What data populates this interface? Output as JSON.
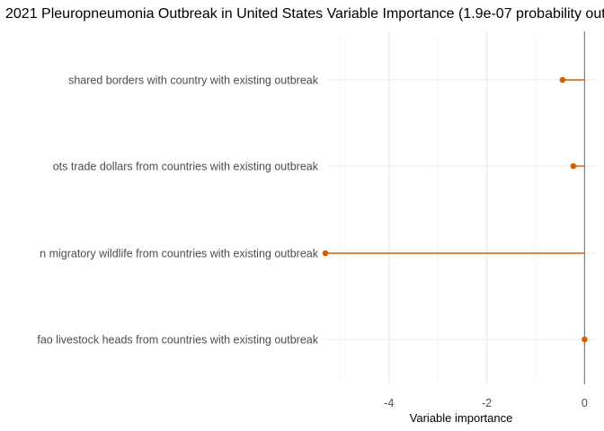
{
  "chart_data": {
    "type": "lollipop",
    "title": "2021 Pleuropneumonia Outbreak in United States Variable Importance (1.9e-07 probability out",
    "xlabel": "Variable importance",
    "ylabel": "",
    "xlim": [
      -5.3,
      0.25
    ],
    "x_ticks": [
      -4,
      -2,
      0
    ],
    "x_tick_labels": [
      "-4",
      "-2",
      "0"
    ],
    "x_minor_ticks": [
      -5,
      -3,
      -1
    ],
    "categories": [
      "shared borders with country with existing outbreak",
      "ots trade dollars from countries with existing outbreak",
      "n migratory wildlife from countries with existing outbreak",
      "fao livestock heads from countries with existing outbreak"
    ],
    "values": [
      -0.45,
      -0.23,
      -5.3,
      0.0
    ],
    "reference_line": 0,
    "grid": true,
    "colors": {
      "point": "#d55e00",
      "segment": "#d55e00",
      "zero_line": "#7f7f7f"
    }
  }
}
